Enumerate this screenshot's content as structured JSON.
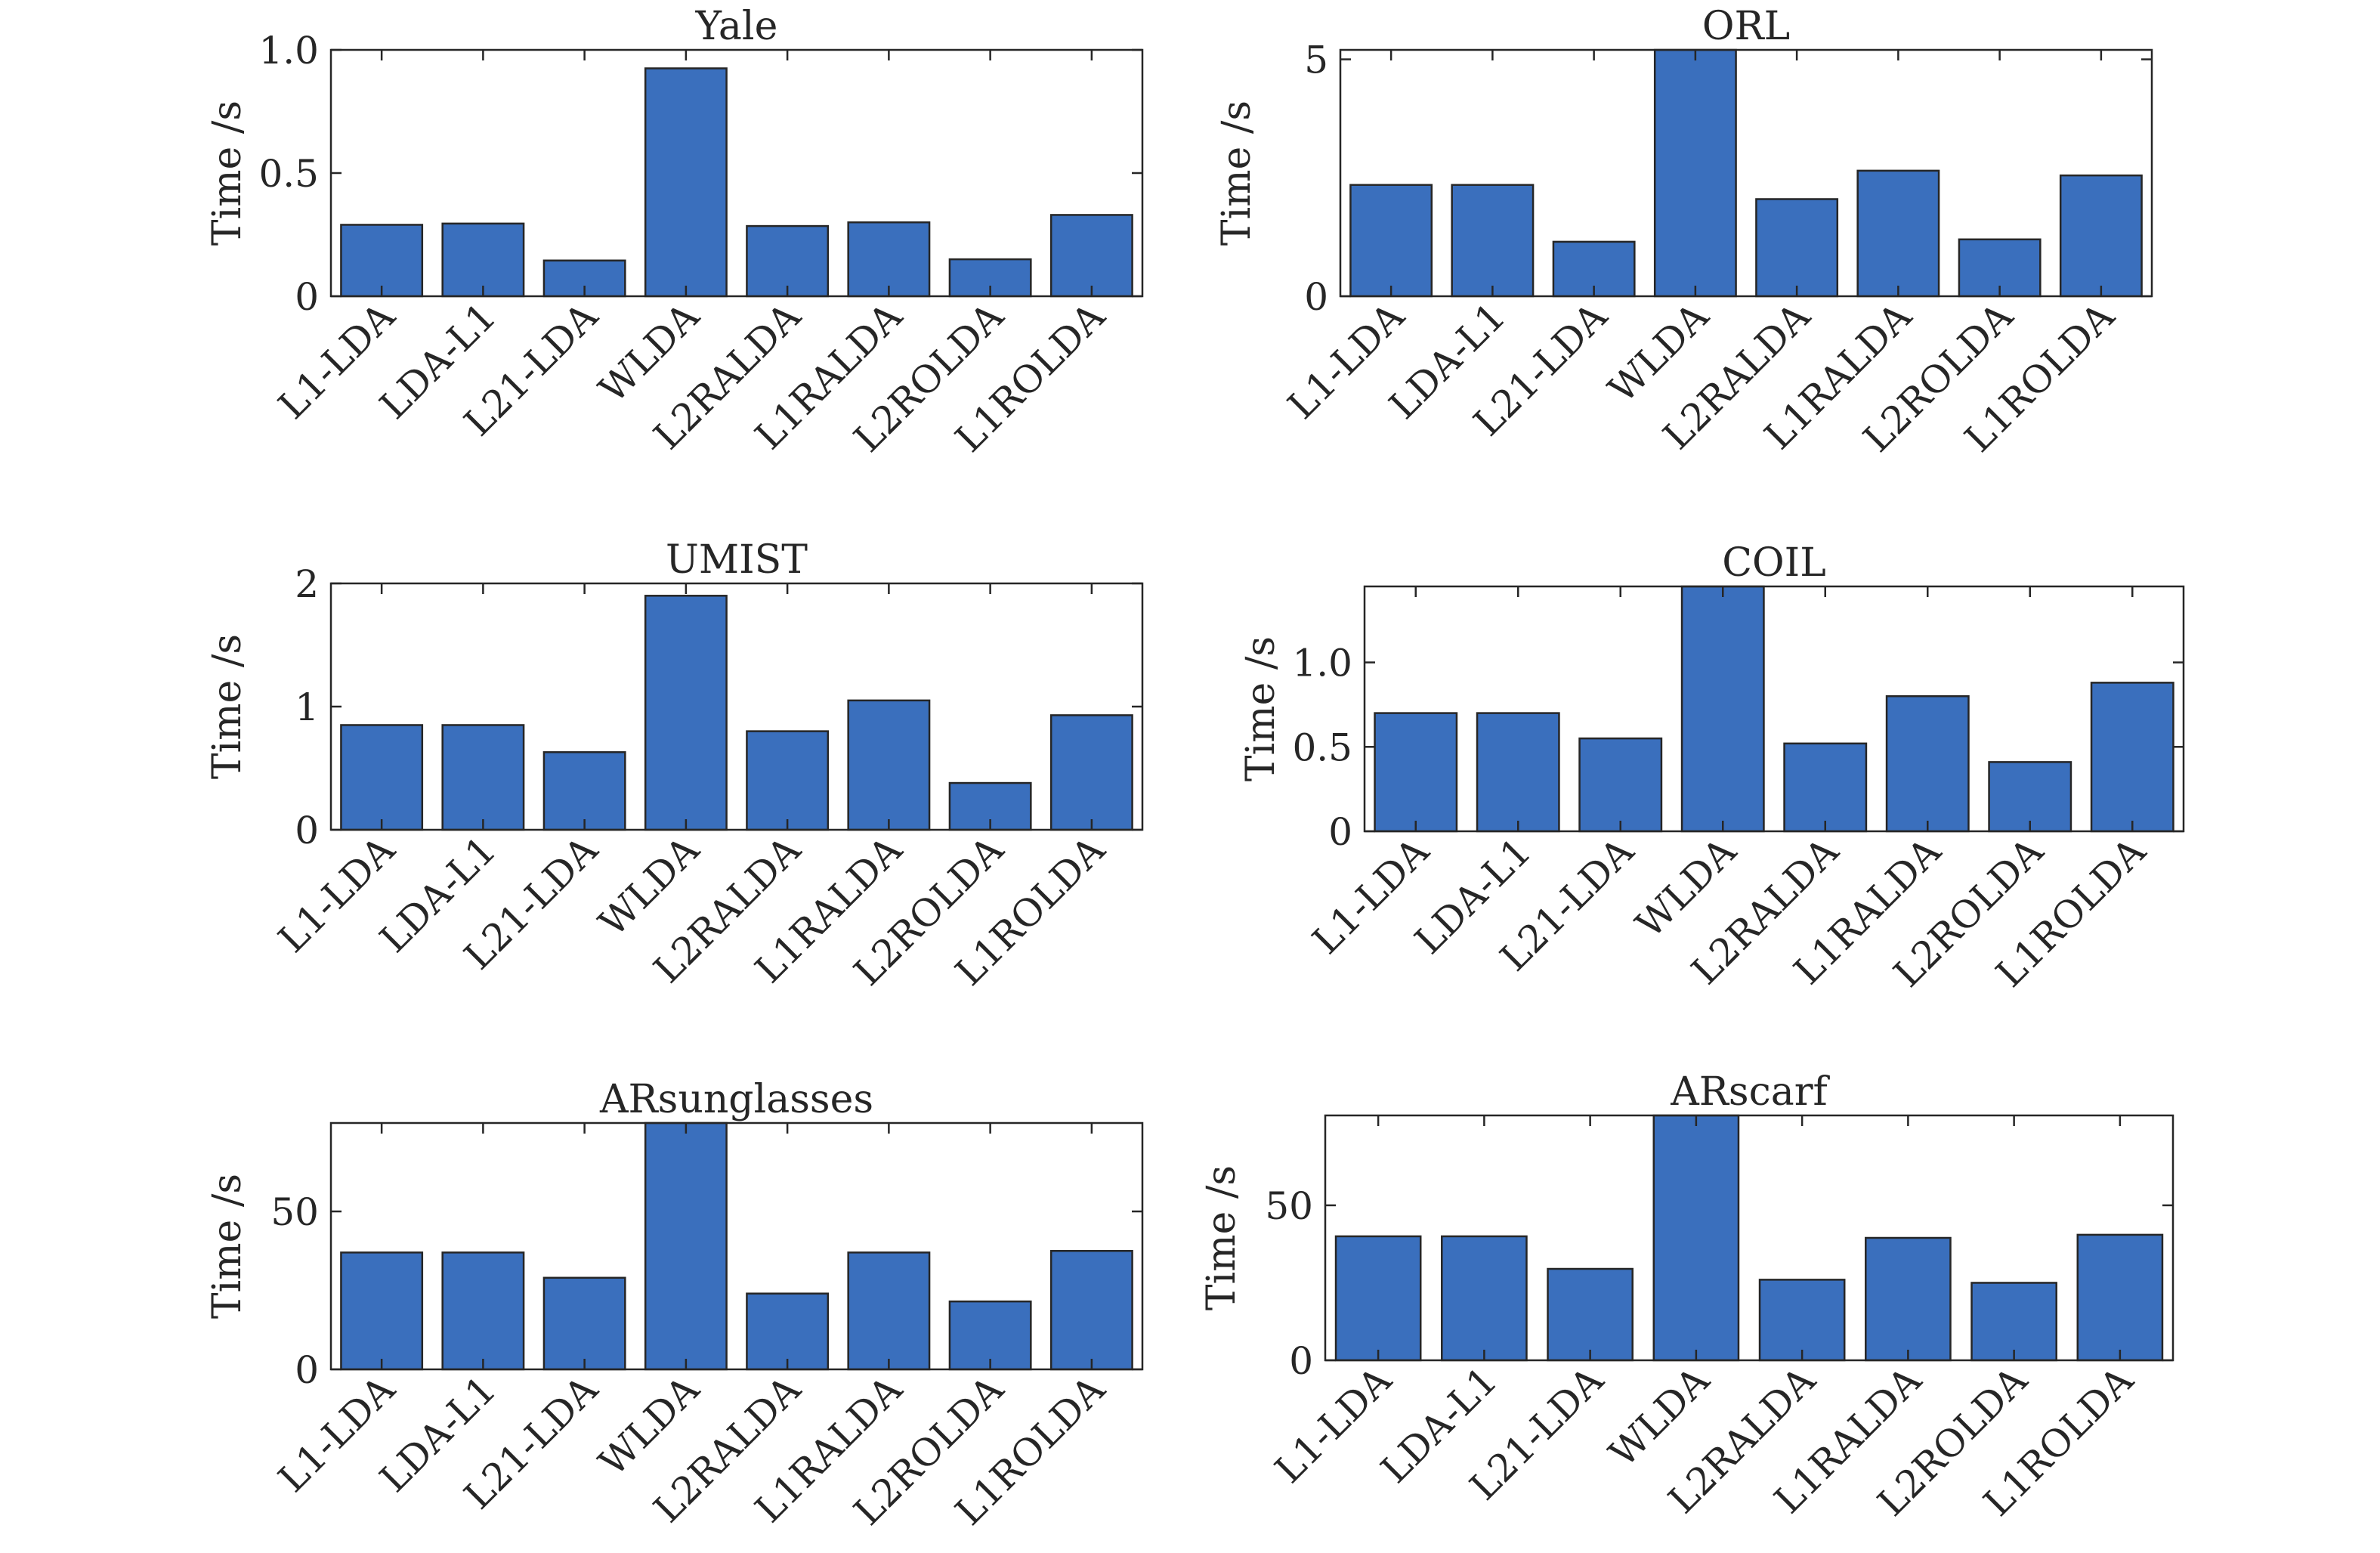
{
  "figure": {
    "bar_color": "#3a6fbd",
    "axis_color": "#262626"
  },
  "chart_data": [
    {
      "type": "bar",
      "title": "Yale",
      "ylabel": "Time /s",
      "xlabel": "",
      "categories": [
        "L1-LDA",
        "LDA-L1",
        "L21-LDA",
        "WLDA",
        "L2RALDA",
        "L1RALDA",
        "L2ROLDA",
        "L1ROLDA"
      ],
      "values": [
        0.29,
        0.295,
        0.145,
        0.925,
        0.285,
        0.3,
        0.15,
        0.33
      ],
      "ylim": [
        0,
        1.0
      ],
      "yticks": [
        0,
        0.5,
        1.0
      ],
      "ytick_labels": [
        "0",
        "0.5",
        "1.0"
      ]
    },
    {
      "type": "bar",
      "title": "ORL",
      "ylabel": "Time /s",
      "xlabel": "",
      "categories": [
        "L1-LDA",
        "LDA-L1",
        "L21-LDA",
        "WLDA",
        "L2RALDA",
        "L1RALDA",
        "L2ROLDA",
        "L1ROLDA"
      ],
      "values": [
        2.35,
        2.35,
        1.15,
        5.2,
        2.05,
        2.65,
        1.2,
        2.55
      ],
      "ylim": [
        0,
        5.2
      ],
      "yticks": [
        0,
        5
      ],
      "ytick_labels": [
        "0",
        "5"
      ]
    },
    {
      "type": "bar",
      "title": "UMIST",
      "ylabel": "Time /s",
      "xlabel": "",
      "categories": [
        "L1-LDA",
        "LDA-L1",
        "L21-LDA",
        "WLDA",
        "L2RALDA",
        "L1RALDA",
        "L2ROLDA",
        "L1ROLDA"
      ],
      "values": [
        0.85,
        0.85,
        0.63,
        1.9,
        0.8,
        1.05,
        0.38,
        0.93
      ],
      "ylim": [
        0,
        2
      ],
      "yticks": [
        0,
        1,
        2
      ],
      "ytick_labels": [
        "0",
        "1",
        "2"
      ]
    },
    {
      "type": "bar",
      "title": "COIL",
      "ylabel": "Time /s",
      "xlabel": "",
      "categories": [
        "L1-LDA",
        "LDA-L1",
        "L21-LDA",
        "WLDA",
        "L2RALDA",
        "L1RALDA",
        "L2ROLDA",
        "L1ROLDA"
      ],
      "values": [
        0.7,
        0.7,
        0.55,
        1.45,
        0.52,
        0.8,
        0.41,
        0.88
      ],
      "ylim": [
        0,
        1.45
      ],
      "yticks": [
        0,
        0.5,
        1.0
      ],
      "ytick_labels": [
        "0",
        "0.5",
        "1.0"
      ]
    },
    {
      "type": "bar",
      "title": "ARsunglasses",
      "ylabel": "Time /s",
      "xlabel": "",
      "categories": [
        "L1-LDA",
        "LDA-L1",
        "L21-LDA",
        "WLDA",
        "L2RALDA",
        "L1RALDA",
        "L2ROLDA",
        "L1ROLDA"
      ],
      "values": [
        37,
        37,
        29,
        78,
        24,
        37,
        21.5,
        37.5
      ],
      "ylim": [
        0,
        78
      ],
      "yticks": [
        0,
        50
      ],
      "ytick_labels": [
        "0",
        "50"
      ]
    },
    {
      "type": "bar",
      "title": "ARscarf",
      "ylabel": "Time /s",
      "xlabel": "",
      "categories": [
        "L1-LDA",
        "LDA-L1",
        "L21-LDA",
        "WLDA",
        "L2RALDA",
        "L1RALDA",
        "L2ROLDA",
        "L1ROLDA"
      ],
      "values": [
        40,
        40,
        29.5,
        79,
        26,
        39.5,
        25,
        40.5
      ],
      "ylim": [
        0,
        79
      ],
      "yticks": [
        0,
        50
      ],
      "ytick_labels": [
        "0",
        "50"
      ]
    }
  ]
}
